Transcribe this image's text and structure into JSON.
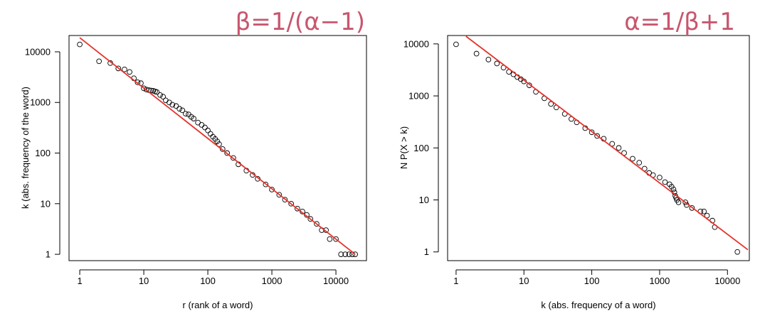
{
  "colors": {
    "fit_line": "#e5332a",
    "points": "#000000",
    "formula": "#c8566e",
    "axes": "#000000",
    "background": "#ffffff"
  },
  "chart_data": [
    {
      "type": "scatter",
      "title": "β=1/(α−1)",
      "xlabel": "r (rank of a word)",
      "ylabel": "k (abs. frequency of the word)",
      "x_scale": "log",
      "y_scale": "log",
      "xlim": [
        0.68,
        30000
      ],
      "ylim": [
        0.75,
        21000
      ],
      "x_ticks": [
        1,
        10,
        100,
        1000,
        10000
      ],
      "x_tick_labels": [
        "1",
        "10",
        "100",
        "1000",
        "10000"
      ],
      "y_ticks": [
        1,
        10,
        100,
        1000,
        10000
      ],
      "y_tick_labels": [
        "1",
        "10",
        "100",
        "1000",
        "10000"
      ],
      "grid": false,
      "series": [
        {
          "style": "open-circles",
          "x": [
            1,
            2,
            3,
            4,
            5,
            6,
            7,
            8,
            9,
            10,
            11,
            12,
            13,
            14,
            15,
            16,
            18,
            20,
            22,
            25,
            28,
            32,
            36,
            40,
            45,
            50,
            55,
            60,
            70,
            80,
            90,
            100,
            110,
            120,
            130,
            140,
            150,
            170,
            200,
            250,
            300,
            400,
            500,
            600,
            800,
            1000,
            1300,
            1600,
            2000,
            2500,
            3000,
            3500,
            4000,
            5000,
            6000,
            7000,
            8000,
            10000,
            12000,
            14000,
            16000,
            18000,
            20000
          ],
          "y": [
            14000,
            6500,
            6000,
            4700,
            4500,
            4000,
            3000,
            2500,
            2400,
            1900,
            1800,
            1750,
            1720,
            1700,
            1650,
            1600,
            1400,
            1300,
            1100,
            1000,
            900,
            850,
            750,
            700,
            600,
            580,
            520,
            480,
            400,
            360,
            320,
            280,
            240,
            210,
            190,
            170,
            150,
            120,
            100,
            80,
            60,
            45,
            37,
            31,
            24,
            19,
            15,
            12,
            10,
            8,
            7,
            6,
            5,
            4,
            3,
            3,
            2,
            2,
            1,
            1,
            1,
            1,
            1
          ]
        },
        {
          "style": "line",
          "x": [
            1,
            20000
          ],
          "y": [
            19000,
            1
          ]
        }
      ]
    },
    {
      "type": "scatter",
      "title": "α=1/β+1",
      "xlabel": "k  (abs. frequency of a word)",
      "ylabel": "N P(X > k)",
      "x_scale": "log",
      "y_scale": "log",
      "xlim": [
        0.75,
        21000
      ],
      "ylim": [
        0.68,
        14500
      ],
      "x_ticks": [
        1,
        10,
        100,
        1000,
        10000
      ],
      "x_tick_labels": [
        "1",
        "10",
        "100",
        "1000",
        "10000"
      ],
      "y_ticks": [
        1,
        10,
        100,
        1000,
        10000
      ],
      "y_tick_labels": [
        "1",
        "10",
        "100",
        "1000",
        "10000"
      ],
      "grid": false,
      "series": [
        {
          "style": "open-circles",
          "x": [
            1,
            2,
            3,
            4,
            5,
            6,
            7,
            8,
            9,
            10,
            12,
            15,
            20,
            25,
            30,
            40,
            50,
            60,
            80,
            100,
            120,
            150,
            200,
            250,
            300,
            400,
            500,
            600,
            700,
            800,
            1000,
            1200,
            1400,
            1500,
            1600,
            1650,
            1700,
            1750,
            1800,
            1900,
            2400,
            2500,
            3000,
            4000,
            4500,
            5000,
            6000,
            6500,
            14000
          ],
          "y": [
            9800,
            6500,
            5000,
            4200,
            3500,
            2900,
            2600,
            2300,
            2100,
            1900,
            1600,
            1200,
            900,
            700,
            600,
            450,
            360,
            310,
            240,
            200,
            170,
            150,
            120,
            100,
            80,
            62,
            52,
            40,
            33,
            30,
            27,
            22,
            20,
            18,
            16,
            14,
            12,
            11,
            10,
            9,
            9,
            8,
            7,
            6,
            6,
            5,
            4,
            3,
            1
          ]
        },
        {
          "style": "line",
          "x": [
            1.4,
            20000
          ],
          "y": [
            14000,
            1.1
          ]
        }
      ]
    }
  ]
}
